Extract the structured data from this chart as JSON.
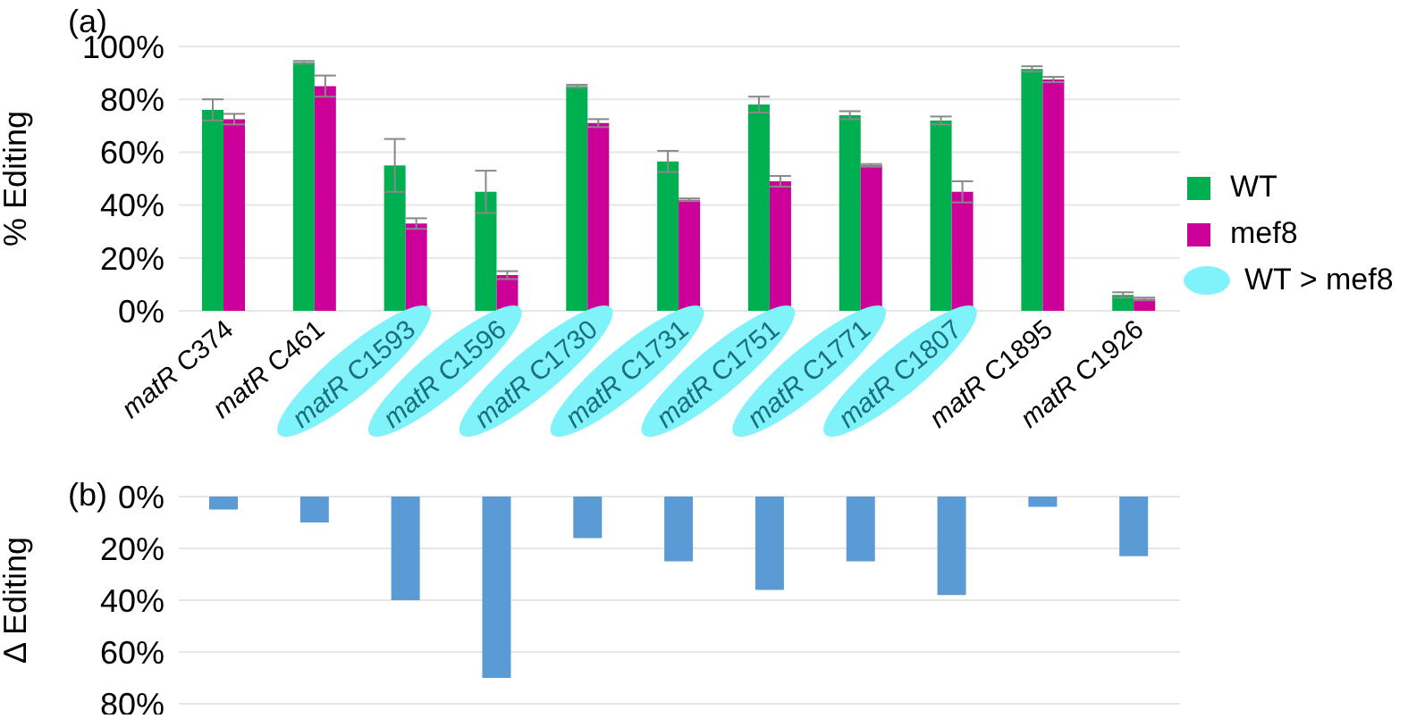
{
  "chart_data": [
    {
      "type": "bar",
      "title": "(a)",
      "ylabel": "% Editing",
      "categories": [
        "matR C374",
        "matR C461",
        "matR C1593",
        "matR C1596",
        "matR C1730",
        "matR C1731",
        "matR C1751",
        "matR C1771",
        "matR C1807",
        "matR C1895",
        "matR C1926"
      ],
      "series": [
        {
          "name": "WT",
          "color": "#00b050",
          "values": [
            76,
            94,
            55,
            45,
            85,
            56.5,
            78,
            74,
            72,
            91.5,
            6
          ],
          "errors": [
            4,
            0.5,
            10,
            8,
            0.5,
            4,
            3,
            1.5,
            1.5,
            1,
            1
          ]
        },
        {
          "name": "mef8",
          "color": "#cc0099",
          "values": [
            72.5,
            85,
            33,
            13.5,
            71,
            42,
            49,
            55,
            45,
            87.5,
            4.5
          ],
          "errors": [
            2,
            4,
            2,
            1.5,
            1.5,
            0.5,
            2,
            0.5,
            4,
            1,
            0.5
          ]
        }
      ],
      "ylim": [
        0,
        100
      ],
      "yticks": [
        {
          "value": 0,
          "label": "0%"
        },
        {
          "value": 20,
          "label": "20%"
        },
        {
          "value": 40,
          "label": "40%"
        },
        {
          "value": 60,
          "label": "60%"
        },
        {
          "value": 80,
          "label": "80%"
        },
        {
          "value": 100,
          "label": "100%"
        }
      ],
      "grid": "y",
      "legend": "right",
      "annotations": [
        "WT > mef8"
      ]
    },
    {
      "type": "bar",
      "title": "(b)",
      "ylabel": "Δ Editing",
      "categories": [
        null,
        null,
        null,
        null,
        null,
        null,
        null,
        null,
        null,
        null,
        null
      ],
      "values": [
        5,
        10,
        40,
        70,
        16,
        25,
        36,
        25,
        38,
        4,
        23
      ],
      "color": "#5b9bd5",
      "ylim": [
        80,
        0
      ],
      "yticks": [
        {
          "value": 0,
          "label": "0%"
        },
        {
          "value": 20,
          "label": "20%"
        },
        {
          "value": 40,
          "label": "40%"
        },
        {
          "value": 60,
          "label": "60%"
        },
        {
          "value": 80,
          "label": "80%"
        }
      ],
      "grid": "y",
      "tick_labels": "y"
    }
  ]
}
